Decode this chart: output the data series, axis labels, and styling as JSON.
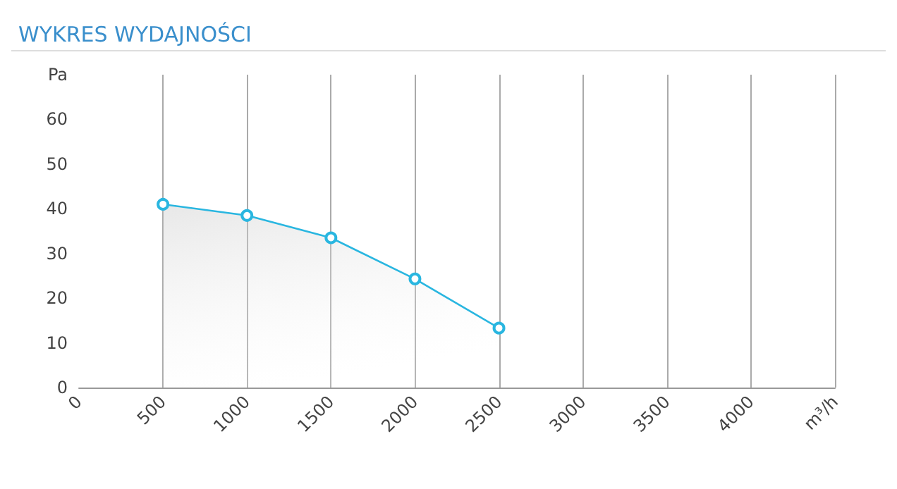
{
  "chart_data": {
    "type": "area",
    "title": "WYKRES WYDAJNOŚCI",
    "x": [
      500,
      1000,
      1500,
      2000,
      2500
    ],
    "series": [
      {
        "color": "#29b6e0",
        "values": [
          41,
          38.5,
          33.5,
          24.3,
          13.3
        ]
      }
    ],
    "xlim": [
      0,
      4500
    ],
    "xticks": [
      0,
      500,
      1000,
      1500,
      2000,
      2500,
      3000,
      3500,
      4000,
      {
        "value": 4500,
        "label": "m³/h"
      }
    ],
    "ylim": [
      0,
      70
    ],
    "yticks": [
      0,
      10,
      20,
      30,
      40,
      50,
      60,
      {
        "value": 70,
        "label": "Pa"
      }
    ],
    "grid": "x",
    "marker": "circle",
    "line_style": "solid"
  }
}
